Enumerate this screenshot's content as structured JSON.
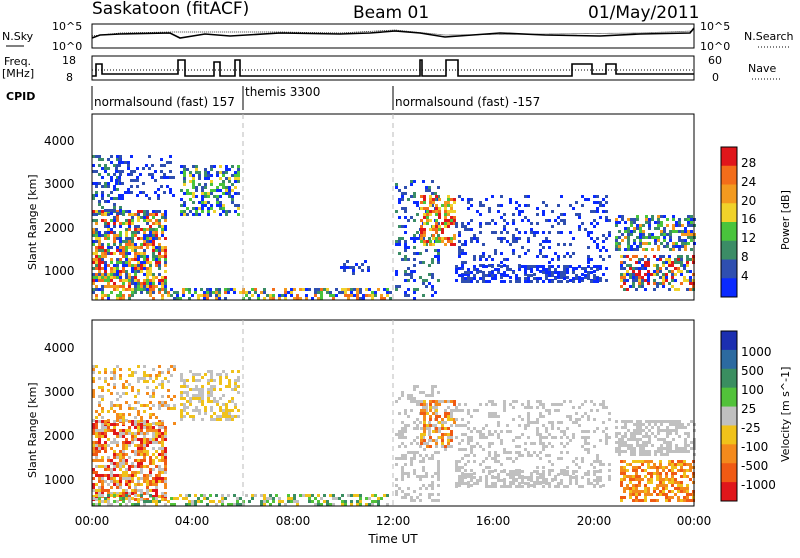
{
  "header": {
    "station": "Saskatoon (fitACF)",
    "beam": "Beam 01",
    "date": "01/May/2011"
  },
  "top_panel": {
    "left_label": "N.Sky",
    "right_label": "N.Search",
    "left_ticks": [
      "10^5",
      "10^0"
    ],
    "right_ticks": [
      "10^5",
      "10^0"
    ]
  },
  "freq_panel": {
    "left_label_1": "Freq.",
    "left_label_2": "[MHz]",
    "right_label": "Nave",
    "left_ticks": [
      "18",
      "8"
    ],
    "right_ticks": [
      "60",
      "0"
    ]
  },
  "cpid": {
    "label": "CPID",
    "segments": [
      {
        "text": "normalsound (fast) 157",
        "start_hour": 0
      },
      {
        "text": "themis 3300",
        "start_hour": 6
      },
      {
        "text": "normalsound (fast) -157",
        "start_hour": 12
      }
    ]
  },
  "power_panel": {
    "ylabel": "Slant Range [km]",
    "yticks": [
      "1000",
      "2000",
      "3000",
      "4000"
    ],
    "colorbar_label": "Power [dB]",
    "colorbar_ticks": [
      "4",
      "8",
      "12",
      "16",
      "20",
      "24",
      "28"
    ],
    "colors": [
      "#0a2aff",
      "#2f4fb0",
      "#3b8c66",
      "#49c43c",
      "#f0d22a",
      "#f39a1f",
      "#f36d1a",
      "#e0161b"
    ]
  },
  "velocity_panel": {
    "ylabel": "Slant Range [km]",
    "yticks": [
      "1000",
      "2000",
      "3000",
      "4000"
    ],
    "colorbar_label": "Velocity [m s^-1]",
    "colorbar_ticks": [
      "1000",
      "500",
      "100",
      "25",
      "-25",
      "-100",
      "-500",
      "-1000"
    ],
    "colors": [
      "#1c2fb0",
      "#2c6aa0",
      "#3a8e60",
      "#52c23a",
      "#c0c0c0",
      "#f0c21a",
      "#f48a1c",
      "#f05a14",
      "#e0161b"
    ]
  },
  "xaxis": {
    "label": "Time UT",
    "ticks": [
      "00:00",
      "04:00",
      "08:00",
      "12:00",
      "16:00",
      "20:00",
      "00:00"
    ]
  }
}
